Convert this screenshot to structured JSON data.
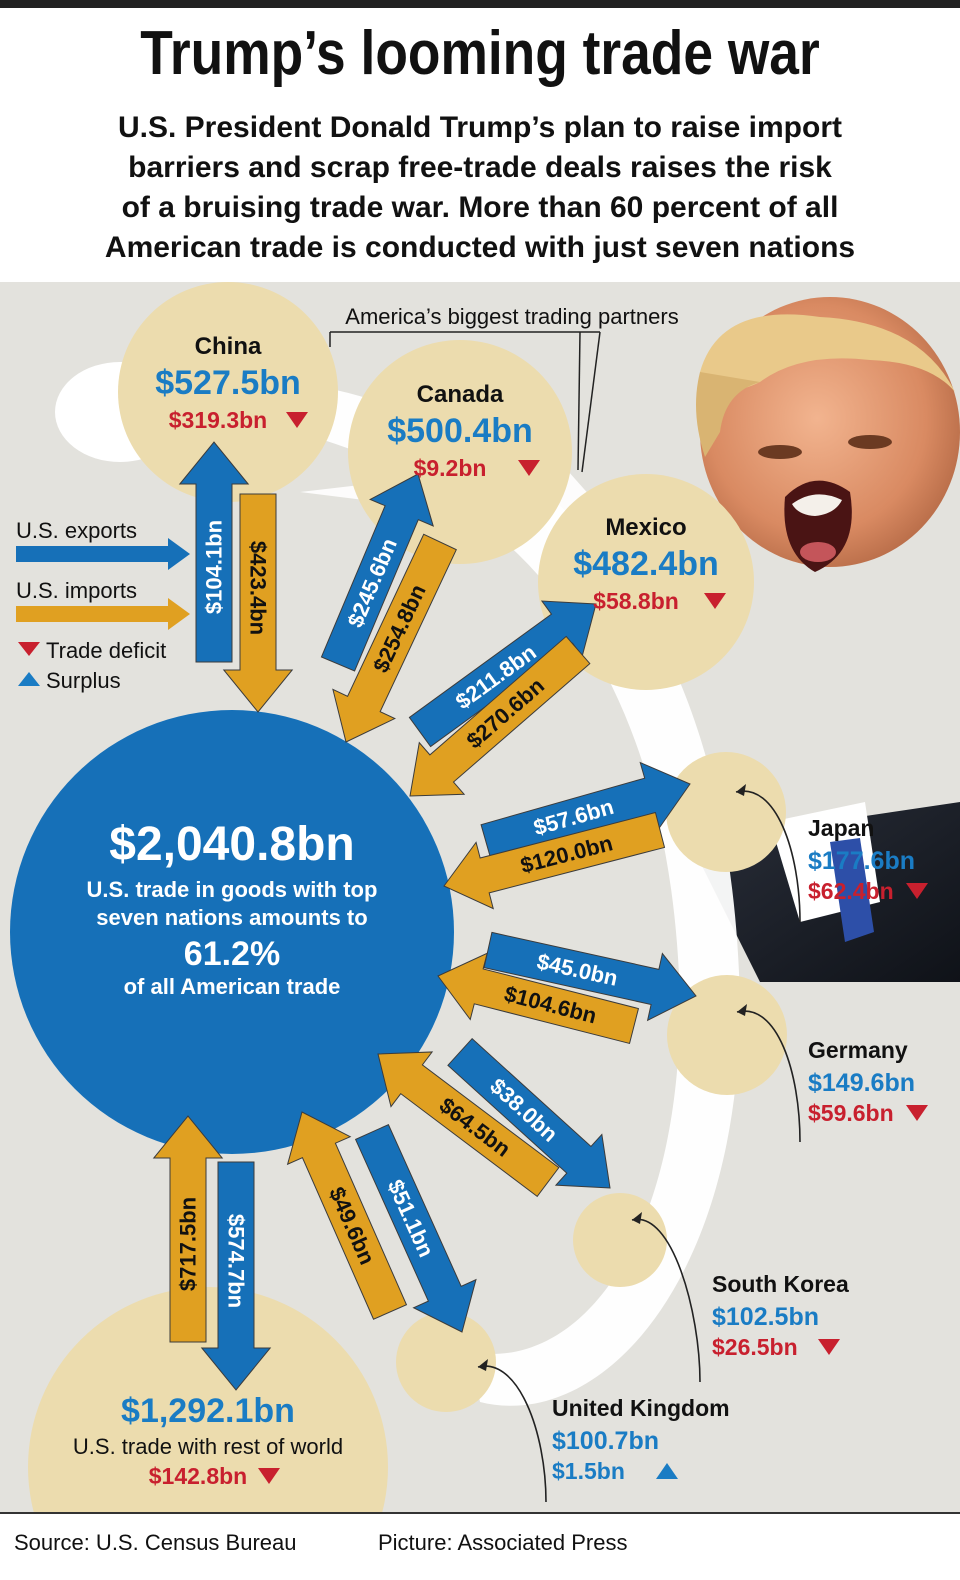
{
  "title": "Trump’s looming trade war",
  "subtitle_lines": [
    "U.S. President Donald Trump’s plan to raise import",
    "barriers and scrap free-trade deals raises the risk",
    "of a bruising trade war. More than 60 percent of all",
    "American trade is conducted with just seven nations"
  ],
  "partners_label": "America’s biggest trading partners",
  "legend": {
    "exports": "U.S. exports",
    "imports": "U.S. imports",
    "deficit": "Trade deficit",
    "surplus": "Surplus"
  },
  "center": {
    "total": "$2,040.8bn",
    "line1": "U.S. trade in goods with top",
    "line2": "seven nations amounts to",
    "percent": "61.2%",
    "line3": "of all American trade"
  },
  "rest_of_world": {
    "total": "$1,292.1bn",
    "label": "U.S. trade with rest of world",
    "balance": "$142.8bn",
    "balance_type": "deficit",
    "exports": "$574.7bn",
    "imports": "$717.5bn"
  },
  "partners": [
    {
      "name": "China",
      "total": "$527.5bn",
      "balance": "$319.3bn",
      "balance_type": "deficit",
      "exports": "$104.1bn",
      "imports": "$423.4bn"
    },
    {
      "name": "Canada",
      "total": "$500.4bn",
      "balance": "$9.2bn",
      "balance_type": "deficit",
      "exports": "$245.6bn",
      "imports": "$254.8bn"
    },
    {
      "name": "Mexico",
      "total": "$482.4bn",
      "balance": "$58.8bn",
      "balance_type": "deficit",
      "exports": "$211.8bn",
      "imports": "$270.6bn"
    },
    {
      "name": "Japan",
      "total": "$177.6bn",
      "balance": "$62.4bn",
      "balance_type": "deficit",
      "exports": "$57.6bn",
      "imports": "$120.0bn"
    },
    {
      "name": "Germany",
      "total": "$149.6bn",
      "balance": "$59.6bn",
      "balance_type": "deficit",
      "exports": "$45.0bn",
      "imports": "$104.6bn"
    },
    {
      "name": "South Korea",
      "total": "$102.5bn",
      "balance": "$26.5bn",
      "balance_type": "deficit",
      "exports": "$38.0bn",
      "imports": "$64.5bn"
    },
    {
      "name": "United Kingdom",
      "total": "$100.7bn",
      "balance": "$1.5bn",
      "balance_type": "surplus",
      "exports": "$51.1bn",
      "imports": "$49.6bn"
    }
  ],
  "colors": {
    "export_blue": "#1670b8",
    "import_orange": "#e0a021",
    "circle_fill": "#ecdcae",
    "deficit_red": "#c8202e",
    "surplus_blue": "#1a7cc4",
    "panel_bg": "#e3e2dd"
  },
  "portrait": "photo of Donald Trump shouting",
  "source": "Source: U.S. Census Bureau",
  "credit": "Picture: Associated Press"
}
